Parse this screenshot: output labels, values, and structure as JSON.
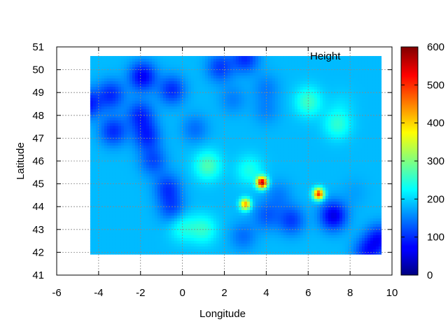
{
  "chart_data": {
    "type": "heatmap",
    "title": "",
    "xlabel": "Longitude",
    "ylabel": "Latitude",
    "xlim": [
      -6,
      10
    ],
    "ylim": [
      41,
      51
    ],
    "xticks": [
      -6,
      -4,
      -2,
      0,
      2,
      4,
      6,
      8,
      10
    ],
    "yticks": [
      41,
      42,
      43,
      44,
      45,
      46,
      47,
      48,
      49,
      50,
      51
    ],
    "grid": true,
    "legend_label": "Height",
    "colorbar": {
      "min": 0,
      "max": 600,
      "ticks": [
        0,
        100,
        200,
        300,
        400,
        500,
        600
      ],
      "colormap": "jet"
    },
    "data_extent": {
      "x": [
        -4.4,
        9.5
      ],
      "y": [
        41.9,
        50.6
      ]
    },
    "background_value": 185,
    "anomalies": [
      {
        "x": -4.5,
        "y": 48.5,
        "value": 90
      },
      {
        "x": -3.4,
        "y": 48.9,
        "value": 100
      },
      {
        "x": -1.9,
        "y": 49.7,
        "value": 70
      },
      {
        "x": -2.0,
        "y": 48.0,
        "value": 100
      },
      {
        "x": -1.7,
        "y": 47.1,
        "value": 100
      },
      {
        "x": -3.3,
        "y": 47.3,
        "value": 100
      },
      {
        "x": -0.5,
        "y": 49.1,
        "value": 100
      },
      {
        "x": 1.8,
        "y": 50.1,
        "value": 110
      },
      {
        "x": 3.0,
        "y": 50.5,
        "value": 100
      },
      {
        "x": -1.4,
        "y": 46.0,
        "value": 120
      },
      {
        "x": -0.7,
        "y": 44.8,
        "value": 110
      },
      {
        "x": -0.5,
        "y": 43.9,
        "value": 120
      },
      {
        "x": 0.6,
        "y": 47.4,
        "value": 140
      },
      {
        "x": 2.4,
        "y": 48.7,
        "value": 150
      },
      {
        "x": 4.0,
        "y": 49.2,
        "value": 150
      },
      {
        "x": 4.0,
        "y": 48.2,
        "value": 155
      },
      {
        "x": 6.0,
        "y": 48.6,
        "value": 260
      },
      {
        "x": 7.4,
        "y": 47.6,
        "value": 250
      },
      {
        "x": 7.6,
        "y": 48.5,
        "value": 200
      },
      {
        "x": 1.2,
        "y": 45.8,
        "value": 270
      },
      {
        "x": 3.2,
        "y": 45.6,
        "value": 240
      },
      {
        "x": 3.8,
        "y": 45.05,
        "value": 560
      },
      {
        "x": 3.0,
        "y": 44.1,
        "value": 430
      },
      {
        "x": 6.5,
        "y": 44.55,
        "value": 500
      },
      {
        "x": 4.6,
        "y": 44.5,
        "value": 150
      },
      {
        "x": 4.0,
        "y": 43.6,
        "value": 130
      },
      {
        "x": 5.2,
        "y": 43.4,
        "value": 110
      },
      {
        "x": 7.2,
        "y": 43.6,
        "value": 60
      },
      {
        "x": 2.9,
        "y": 42.7,
        "value": 140
      },
      {
        "x": 1.0,
        "y": 43.0,
        "value": 250
      },
      {
        "x": 0.0,
        "y": 43.1,
        "value": 240
      },
      {
        "x": 9.4,
        "y": 42.6,
        "value": 90
      },
      {
        "x": 8.8,
        "y": 42.0,
        "value": 100
      },
      {
        "x": 8.2,
        "y": 44.6,
        "value": 170
      }
    ]
  }
}
